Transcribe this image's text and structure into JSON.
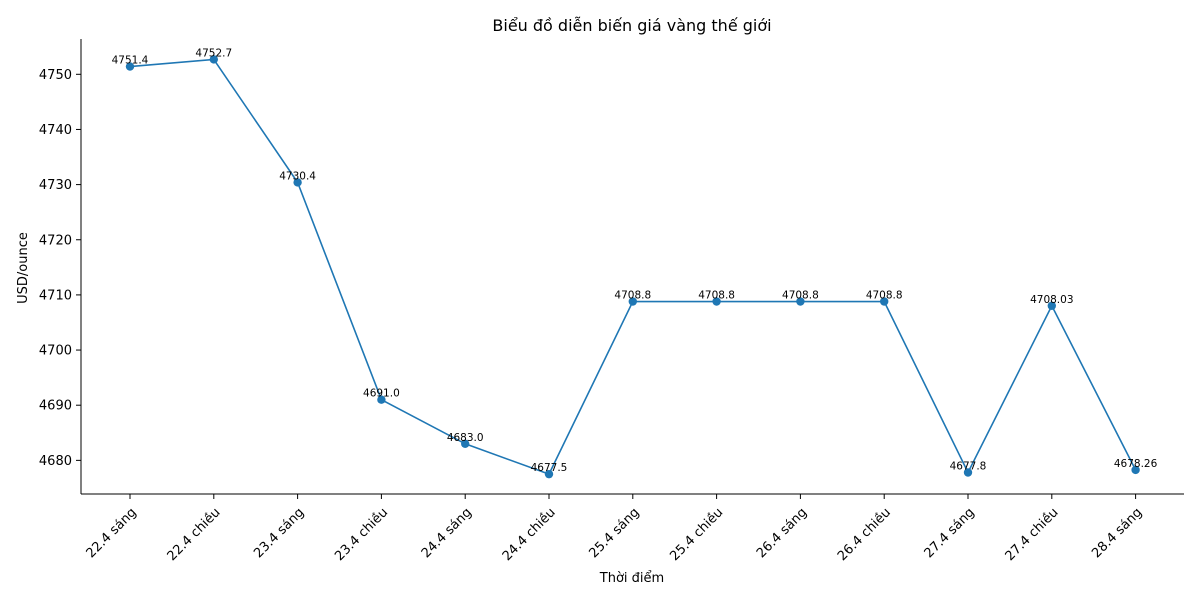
{
  "chart_data": {
    "type": "line",
    "title": "Biểu đồ diễn biến giá vàng thế giới",
    "xlabel": "Thời điểm",
    "ylabel": "USD/ounce",
    "categories": [
      "22.4 sáng",
      "22.4 chiều",
      "23.4 sáng",
      "23.4 chiều",
      "24.4 sáng",
      "24.4 chiều",
      "25.4 sáng",
      "25.4 chiều",
      "26.4 sáng",
      "26.4 chiều",
      "27.4 sáng",
      "27.4 chiều",
      "28.4 sáng"
    ],
    "values": [
      4751.4,
      4752.7,
      4730.4,
      4691.0,
      4683.0,
      4677.5,
      4708.8,
      4708.8,
      4708.8,
      4708.8,
      4677.8,
      4708.03,
      4678.26
    ],
    "value_labels": [
      "4751.4",
      "4752.7",
      "4730.4",
      "4691.0",
      "4683.0",
      "4677.5",
      "4708.8",
      "4708.8",
      "4708.8",
      "4708.8",
      "4677.8",
      "4708.03",
      "4678.26"
    ],
    "yticks": [
      4680,
      4690,
      4700,
      4710,
      4720,
      4730,
      4740,
      4750
    ],
    "ylim": [
      4673.9,
      4756.4
    ],
    "grid": false,
    "legend": "none",
    "color": "#1f77b4"
  }
}
